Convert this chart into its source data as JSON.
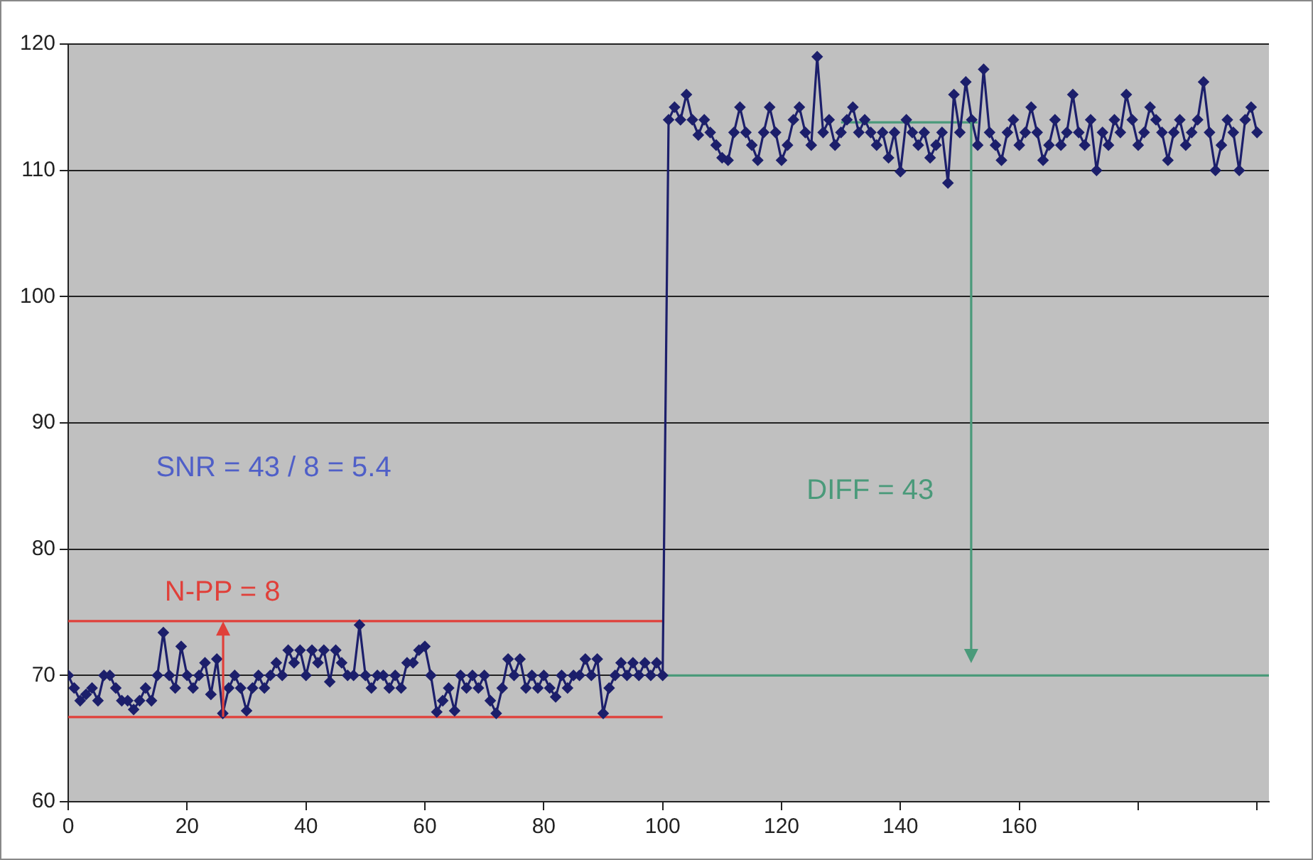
{
  "chart_data": {
    "type": "line",
    "xlim": [
      0,
      202
    ],
    "xticks": [
      0,
      20,
      40,
      60,
      80,
      100,
      120,
      140,
      160,
      {
        "value": 180,
        "label": null
      },
      {
        "value": 200,
        "label": null
      }
    ],
    "ylim": [
      60,
      120
    ],
    "yticks": [
      60,
      70,
      80,
      90,
      100,
      110,
      120
    ],
    "grid": "y",
    "legend": false,
    "series": [
      {
        "color": "#1c1f6b",
        "marker": "diamond",
        "x": [
          0,
          1,
          2,
          3,
          4,
          5,
          6,
          7,
          8,
          9,
          10,
          11,
          12,
          13,
          14,
          15,
          16,
          17,
          18,
          19,
          20,
          21,
          22,
          23,
          24,
          25,
          26,
          27,
          28,
          29,
          30,
          31,
          32,
          33,
          34,
          35,
          36,
          37,
          38,
          39,
          40,
          41,
          42,
          43,
          44,
          45,
          46,
          47,
          48,
          49,
          50,
          51,
          52,
          53,
          54,
          55,
          56,
          57,
          58,
          59,
          60,
          61,
          62,
          63,
          64,
          65,
          66,
          67,
          68,
          69,
          70,
          71,
          72,
          73,
          74,
          75,
          76,
          77,
          78,
          79,
          80,
          81,
          82,
          83,
          84,
          85,
          86,
          87,
          88,
          89,
          90,
          91,
          92,
          93,
          94,
          95,
          96,
          97,
          98,
          99,
          100,
          101,
          102,
          103,
          104,
          105,
          106,
          107,
          108,
          109,
          110,
          111,
          112,
          113,
          114,
          115,
          116,
          117,
          118,
          119,
          120,
          121,
          122,
          123,
          124,
          125,
          126,
          127,
          128,
          129,
          130,
          131,
          132,
          133,
          134,
          135,
          136,
          137,
          138,
          139,
          140,
          141,
          142,
          143,
          144,
          145,
          146,
          147,
          148,
          149,
          150,
          151,
          152,
          153,
          154,
          155,
          156,
          157,
          158,
          159,
          160,
          161,
          162,
          163,
          164,
          165,
          166,
          167,
          168,
          169,
          170,
          171,
          172,
          173,
          174,
          175,
          176,
          177,
          178,
          179,
          180,
          181,
          182,
          183,
          184,
          185,
          186,
          187,
          188,
          189,
          190,
          191,
          192,
          193,
          194,
          195,
          196,
          197,
          198,
          199,
          200
        ],
        "values": [
          70,
          69,
          68,
          68.5,
          69,
          68,
          70,
          70,
          69,
          68,
          68,
          67.3,
          68,
          69,
          68,
          70,
          73.4,
          70,
          69,
          72.3,
          70,
          69,
          70,
          71,
          68.5,
          71.3,
          67,
          69,
          70,
          69,
          67.2,
          69,
          70,
          69,
          70,
          71,
          70,
          72,
          71,
          72,
          70,
          72,
          71,
          72,
          69.5,
          72,
          71,
          70,
          70,
          74,
          70,
          69,
          70,
          70,
          69,
          70,
          69,
          71,
          71,
          72,
          72.3,
          70,
          67.1,
          68,
          69,
          67.2,
          70,
          69,
          70,
          69,
          70,
          68,
          67,
          69,
          71.3,
          70,
          71.3,
          69,
          70,
          69,
          70,
          69,
          68.3,
          70,
          69,
          70,
          70,
          71.3,
          70,
          71.3,
          67,
          69,
          70,
          71,
          70,
          71,
          70,
          71,
          70,
          71,
          70,
          114,
          115,
          114,
          116,
          114,
          112.8,
          114,
          113,
          112,
          111,
          110.8,
          113,
          115,
          113,
          112,
          110.8,
          113,
          115,
          113,
          110.8,
          112,
          114,
          115,
          113,
          112,
          119,
          113,
          114,
          112,
          113,
          114,
          115,
          113,
          114,
          113,
          112,
          113,
          111,
          113,
          109.9,
          114,
          113,
          112,
          113,
          111,
          112,
          113,
          109,
          116,
          113,
          117,
          114,
          112,
          118,
          113,
          112,
          110.8,
          113,
          114,
          112,
          113,
          115,
          113,
          110.8,
          112,
          114,
          112,
          113,
          116,
          113,
          112,
          114,
          110,
          113,
          112,
          114,
          113,
          116,
          114,
          112,
          113,
          115,
          114,
          113,
          110.8,
          113,
          114,
          112,
          113,
          114,
          117,
          113,
          110,
          112,
          114,
          113,
          110,
          114,
          115,
          113
        ]
      },
      {
        "color": "#e0403a",
        "marker": "none",
        "x": [
          0,
          100
        ],
        "values": [
          74.3,
          74.3
        ]
      },
      {
        "color": "#e0403a",
        "marker": "none",
        "x": [
          0,
          100
        ],
        "values": [
          66.7,
          66.7
        ]
      },
      {
        "color": "#4a9a7a",
        "marker": "none",
        "x": [
          100,
          202
        ],
        "values": [
          70,
          70
        ]
      },
      {
        "color": "#4a9a7a",
        "marker": "none",
        "x": [
          130,
          153
        ],
        "values": [
          113.8,
          113.8
        ]
      }
    ],
    "annotations": [
      "SNR = 43 / 8 = 5.4",
      {
        "text": "N-PP = 8",
        "x": 26,
        "y": 74.3
      },
      "DIFF = 43"
    ]
  }
}
